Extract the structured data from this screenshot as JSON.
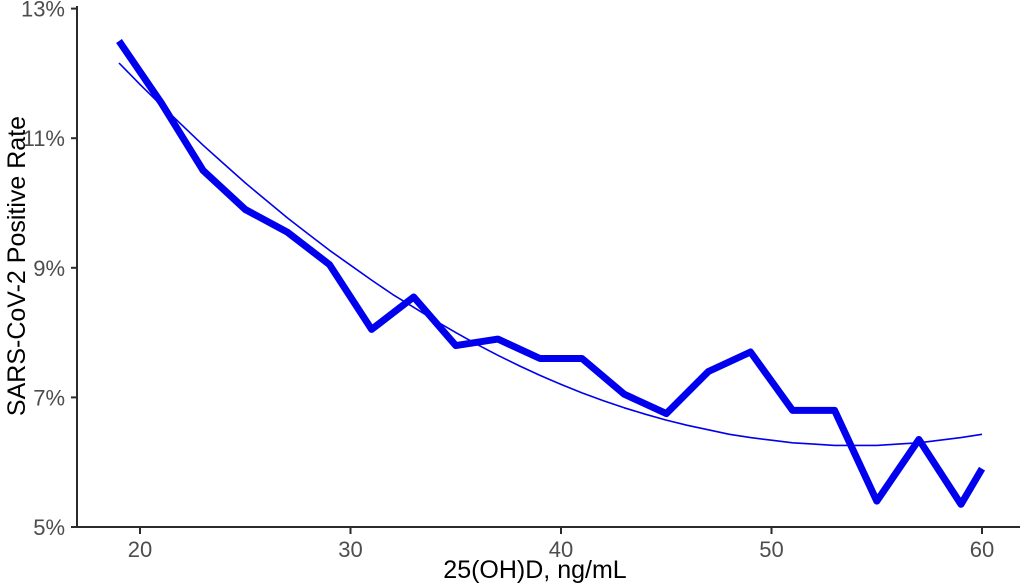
{
  "page": {
    "background": "#ffffff"
  },
  "chart_data": {
    "type": "line",
    "title": "",
    "xlabel": "25(OH)D, ng/mL",
    "ylabel": "SARS-CoV-2 Positive Rate",
    "xlim": [
      17,
      62
    ],
    "ylim": [
      5,
      13
    ],
    "x_ticks": [
      20,
      30,
      40,
      50,
      60
    ],
    "y_ticks": [
      5,
      7,
      9,
      11,
      13
    ],
    "y_tick_suffix": "%",
    "grid": false,
    "legend": "none",
    "colors": {
      "line": "#0000EE",
      "axis": "#2b2b2b",
      "tick_label": "#4d4d4d",
      "axis_title": "#000000"
    },
    "series": [
      {
        "name": "observed-positive-rate",
        "style": "thick",
        "stroke_width": 7,
        "x": [
          19,
          21,
          23,
          25,
          27,
          29,
          31,
          33,
          35,
          37,
          39,
          41,
          43,
          45,
          47,
          49,
          51,
          53,
          55,
          57,
          59,
          60
        ],
        "y": [
          12.5,
          11.55,
          10.5,
          9.9,
          9.55,
          9.05,
          8.05,
          8.55,
          7.8,
          7.9,
          7.6,
          7.6,
          7.05,
          6.75,
          7.4,
          7.7,
          6.8,
          6.8,
          5.4,
          6.35,
          5.35,
          5.9
        ]
      },
      {
        "name": "fitted-trend",
        "style": "thin",
        "stroke_width": 1.6,
        "x": [
          19,
          20,
          21,
          22,
          23,
          24,
          25,
          26,
          27,
          28,
          29,
          30,
          31,
          32,
          33,
          34,
          35,
          36,
          37,
          38,
          39,
          40,
          41,
          42,
          43,
          44,
          45,
          46,
          47,
          48,
          49,
          50,
          51,
          52,
          53,
          54,
          55,
          56,
          57,
          58,
          59,
          60
        ],
        "y": [
          12.16,
          11.83,
          11.51,
          11.2,
          10.89,
          10.6,
          10.31,
          10.04,
          9.77,
          9.52,
          9.27,
          9.04,
          8.81,
          8.59,
          8.39,
          8.19,
          8.0,
          7.82,
          7.65,
          7.49,
          7.34,
          7.2,
          7.07,
          6.95,
          6.84,
          6.74,
          6.65,
          6.57,
          6.5,
          6.43,
          6.38,
          6.34,
          6.3,
          6.28,
          6.26,
          6.26,
          6.26,
          6.28,
          6.3,
          6.34,
          6.38,
          6.43
        ]
      }
    ]
  }
}
